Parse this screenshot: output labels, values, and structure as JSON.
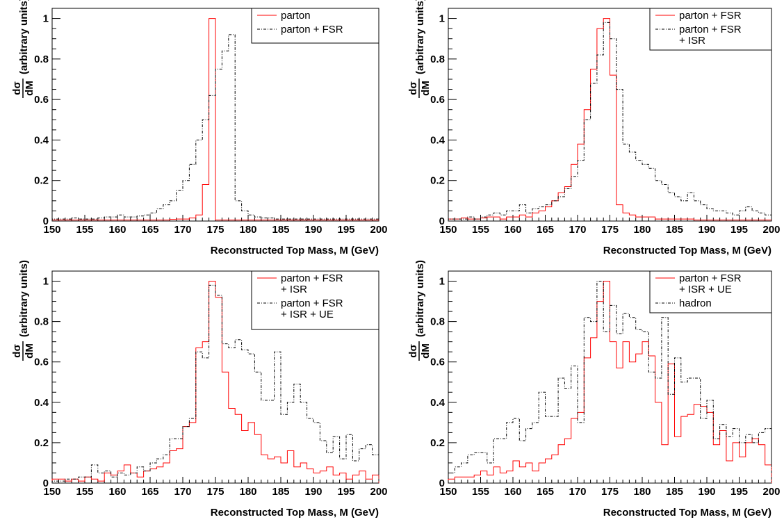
{
  "chart_data": [
    {
      "type": "line",
      "xlabel": "Reconstructed Top Mass, M (GeV)",
      "ylabel": {
        "numerator": "dσ",
        "denominator": "dM",
        "suffix": "(arbitrary units)"
      },
      "xlim": [
        150,
        200
      ],
      "ylim": [
        0,
        1.05
      ],
      "xticks": [
        "150",
        "155",
        "160",
        "165",
        "170",
        "175",
        "180",
        "185",
        "190",
        "195",
        "200"
      ],
      "yticks": [
        "0",
        "0.2",
        "0.4",
        "0.6",
        "0.8",
        "1"
      ],
      "grid": false,
      "legend_position": "top-right",
      "series": [
        {
          "name": [
            "parton"
          ],
          "color": "#ff0000",
          "style": "solid",
          "bin_start": 150,
          "bin_width": 1,
          "values": [
            0.005,
            0.005,
            0.005,
            0.005,
            0.005,
            0.005,
            0.005,
            0.005,
            0.005,
            0.005,
            0.005,
            0.005,
            0.005,
            0.005,
            0.005,
            0.005,
            0.005,
            0.005,
            0.008,
            0.01,
            0.01,
            0.015,
            0.03,
            0.18,
            1.0,
            0.005,
            0.005,
            0.005,
            0.005,
            0.005,
            0.005,
            0.005,
            0.005,
            0.005,
            0.005,
            0.005,
            0.005,
            0.005,
            0.005,
            0.005,
            0.005,
            0.005,
            0.005,
            0.005,
            0.005,
            0.005,
            0.005,
            0.005,
            0.005,
            0.005
          ]
        },
        {
          "name": [
            "parton + FSR"
          ],
          "color": "#000000",
          "style": "dashdot",
          "bin_start": 150,
          "bin_width": 1,
          "values": [
            0.01,
            0.01,
            0.01,
            0.015,
            0.01,
            0.01,
            0.01,
            0.015,
            0.02,
            0.02,
            0.03,
            0.02,
            0.02,
            0.025,
            0.03,
            0.04,
            0.06,
            0.08,
            0.1,
            0.15,
            0.2,
            0.28,
            0.4,
            0.5,
            0.62,
            0.75,
            0.84,
            0.92,
            0.1,
            0.05,
            0.03,
            0.02,
            0.015,
            0.015,
            0.01,
            0.01,
            0.01,
            0.01,
            0.01,
            0.01,
            0.01,
            0.01,
            0.01,
            0.01,
            0.01,
            0.01,
            0.01,
            0.01,
            0.01,
            0.01
          ]
        }
      ]
    },
    {
      "type": "line",
      "xlabel": "Reconstructed Top Mass, M (GeV)",
      "ylabel": {
        "numerator": "dσ",
        "denominator": "dM",
        "suffix": "(arbitrary units)"
      },
      "xlim": [
        150,
        200
      ],
      "ylim": [
        0,
        1.05
      ],
      "xticks": [
        "150",
        "155",
        "160",
        "165",
        "170",
        "175",
        "180",
        "185",
        "190",
        "195",
        "200"
      ],
      "yticks": [
        "0",
        "0.2",
        "0.4",
        "0.6",
        "0.8",
        "1"
      ],
      "grid": false,
      "legend_position": "top-right",
      "series": [
        {
          "name": [
            "parton + FSR"
          ],
          "color": "#ff0000",
          "style": "solid",
          "bin_start": 150,
          "bin_width": 1,
          "values": [
            0.01,
            0.01,
            0.015,
            0.01,
            0.01,
            0.015,
            0.02,
            0.02,
            0.01,
            0.02,
            0.02,
            0.03,
            0.02,
            0.04,
            0.05,
            0.07,
            0.1,
            0.14,
            0.17,
            0.28,
            0.38,
            0.55,
            0.75,
            0.95,
            1.0,
            0.72,
            0.08,
            0.04,
            0.03,
            0.02,
            0.02,
            0.02,
            0.01,
            0.01,
            0.01,
            0.01,
            0.01,
            0.01,
            0.005,
            0.005,
            0.005,
            0.005,
            0.005,
            0.005,
            0.005,
            0.005,
            0.005,
            0.005,
            0.005,
            0.005
          ]
        },
        {
          "name": [
            "parton + FSR",
            "+ ISR"
          ],
          "color": "#000000",
          "style": "dashdot",
          "bin_start": 150,
          "bin_width": 1,
          "values": [
            0.01,
            0.01,
            0.01,
            0.02,
            0.01,
            0.02,
            0.03,
            0.04,
            0.03,
            0.05,
            0.05,
            0.08,
            0.04,
            0.06,
            0.07,
            0.08,
            0.1,
            0.12,
            0.16,
            0.22,
            0.3,
            0.5,
            0.68,
            0.82,
            0.98,
            0.9,
            0.65,
            0.38,
            0.34,
            0.3,
            0.28,
            0.26,
            0.2,
            0.18,
            0.14,
            0.12,
            0.1,
            0.14,
            0.1,
            0.08,
            0.06,
            0.05,
            0.05,
            0.04,
            0.03,
            0.05,
            0.07,
            0.05,
            0.04,
            0.03
          ]
        }
      ]
    },
    {
      "type": "line",
      "xlabel": "Reconstructed Top Mass, M (GeV)",
      "ylabel": {
        "numerator": "dσ",
        "denominator": "dM",
        "suffix": "(arbitrary units)"
      },
      "xlim": [
        150,
        200
      ],
      "ylim": [
        0,
        1.05
      ],
      "xticks": [
        "150",
        "155",
        "160",
        "165",
        "170",
        "175",
        "180",
        "185",
        "190",
        "195",
        "200"
      ],
      "yticks": [
        "0",
        "0.2",
        "0.4",
        "0.6",
        "0.8",
        "1"
      ],
      "grid": false,
      "legend_position": "top-right",
      "series": [
        {
          "name": [
            "parton + FSR",
            "+ ISR"
          ],
          "color": "#ff0000",
          "style": "solid",
          "bin_start": 150,
          "bin_width": 1,
          "values": [
            0.02,
            0.02,
            0.01,
            0.02,
            0.01,
            0.03,
            0.02,
            0.01,
            0.05,
            0.04,
            0.06,
            0.09,
            0.05,
            0.03,
            0.06,
            0.07,
            0.08,
            0.1,
            0.16,
            0.17,
            0.28,
            0.3,
            0.67,
            0.7,
            1.0,
            0.92,
            0.55,
            0.37,
            0.34,
            0.26,
            0.3,
            0.24,
            0.14,
            0.12,
            0.13,
            0.1,
            0.16,
            0.08,
            0.1,
            0.07,
            0.05,
            0.06,
            0.08,
            0.04,
            0.05,
            0.02,
            0.04,
            0.06,
            0.02,
            0.04
          ]
        },
        {
          "name": [
            "parton + FSR",
            "+ ISR + UE"
          ],
          "color": "#000000",
          "style": "dashdot",
          "bin_start": 150,
          "bin_width": 1,
          "values": [
            0.01,
            0.01,
            0.02,
            0.02,
            0.03,
            0.03,
            0.09,
            0.05,
            0.06,
            0.03,
            0.05,
            0.04,
            0.05,
            0.08,
            0.06,
            0.1,
            0.12,
            0.14,
            0.22,
            0.22,
            0.28,
            0.32,
            0.65,
            0.62,
            0.98,
            0.93,
            0.69,
            0.67,
            0.71,
            0.66,
            0.64,
            0.55,
            0.41,
            0.41,
            0.65,
            0.34,
            0.4,
            0.49,
            0.4,
            0.32,
            0.3,
            0.21,
            0.15,
            0.23,
            0.12,
            0.24,
            0.11,
            0.17,
            0.19,
            0.14
          ]
        }
      ]
    },
    {
      "type": "line",
      "xlabel": "Reconstructed Top Mass, M (GeV)",
      "ylabel": {
        "numerator": "dσ",
        "denominator": "dM",
        "suffix": "(arbitrary units)"
      },
      "xlim": [
        150,
        200
      ],
      "ylim": [
        0,
        1.05
      ],
      "xticks": [
        "150",
        "155",
        "160",
        "165",
        "170",
        "175",
        "180",
        "185",
        "190",
        "195",
        "200"
      ],
      "yticks": [
        "0",
        "0.2",
        "0.4",
        "0.6",
        "0.8",
        "1"
      ],
      "grid": false,
      "legend_position": "top-right",
      "series": [
        {
          "name": [
            "parton + FSR",
            "+ ISR + UE"
          ],
          "color": "#ff0000",
          "style": "solid",
          "bin_start": 150,
          "bin_width": 1,
          "values": [
            0.02,
            0.03,
            0.03,
            0.03,
            0.04,
            0.06,
            0.04,
            0.08,
            0.05,
            0.06,
            0.11,
            0.08,
            0.1,
            0.06,
            0.1,
            0.12,
            0.14,
            0.19,
            0.22,
            0.32,
            0.35,
            0.62,
            0.72,
            0.9,
            1.0,
            0.7,
            0.57,
            0.7,
            0.6,
            0.64,
            0.7,
            0.63,
            0.4,
            0.19,
            0.59,
            0.23,
            0.33,
            0.34,
            0.39,
            0.38,
            0.35,
            0.19,
            0.26,
            0.11,
            0.2,
            0.13,
            0.2,
            0.22,
            0.19,
            0.09
          ]
        },
        {
          "name": [
            "hadron"
          ],
          "color": "#000000",
          "style": "dashdot",
          "bin_start": 150,
          "bin_width": 1,
          "values": [
            0.05,
            0.08,
            0.1,
            0.14,
            0.15,
            0.15,
            0.1,
            0.22,
            0.22,
            0.3,
            0.32,
            0.21,
            0.27,
            0.3,
            0.45,
            0.33,
            0.33,
            0.52,
            0.47,
            0.58,
            0.3,
            0.82,
            0.8,
            1.0,
            0.75,
            0.88,
            0.74,
            0.84,
            0.82,
            0.76,
            0.75,
            0.55,
            0.52,
            0.82,
            0.44,
            0.62,
            0.5,
            0.52,
            0.52,
            0.32,
            0.41,
            0.22,
            0.29,
            0.23,
            0.27,
            0.2,
            0.24,
            0.2,
            0.25,
            0.27
          ]
        }
      ]
    }
  ]
}
